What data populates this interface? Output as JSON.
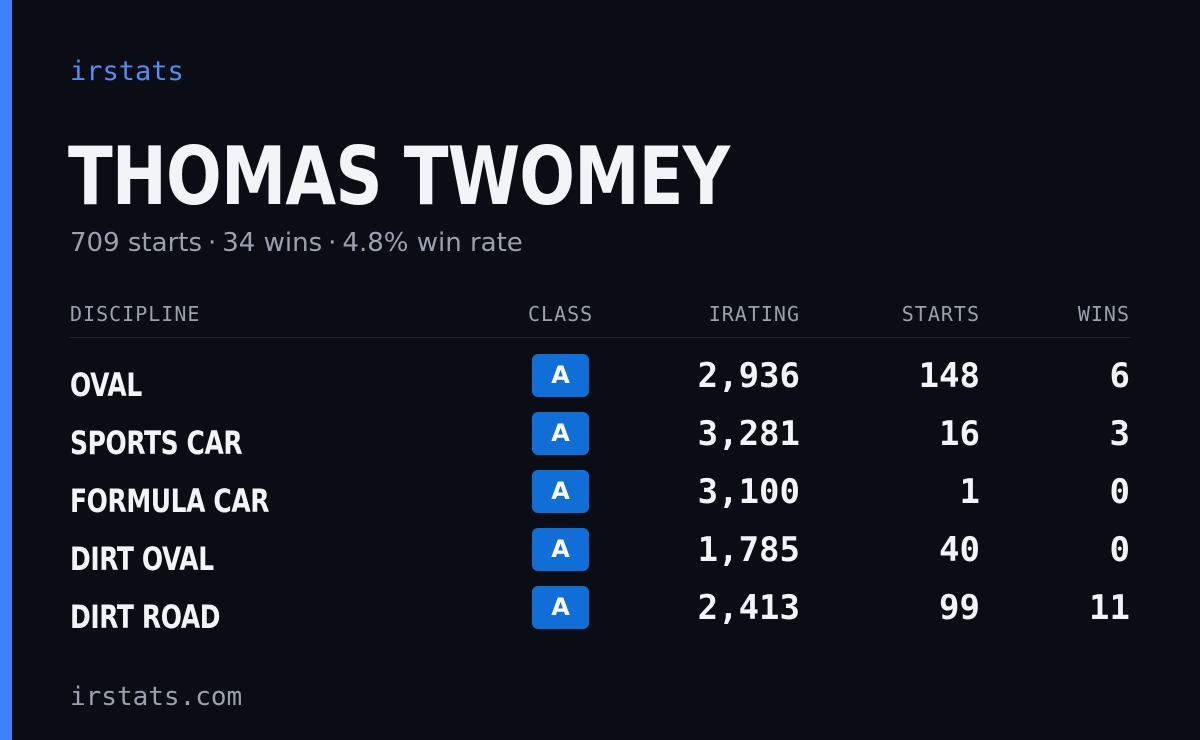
{
  "brand": "irstats",
  "driver": {
    "name": "THOMAS TWOMEY",
    "starts_text": "709 starts",
    "wins_text": "34 wins",
    "winrate_text": "4.8% win rate",
    "separator": "·"
  },
  "table": {
    "headers": {
      "discipline": "DISCIPLINE",
      "class": "CLASS",
      "irating": "IRATING",
      "starts": "STARTS",
      "wins": "WINS"
    },
    "rows": [
      {
        "discipline": "OVAL",
        "class": "A",
        "irating": "2,936",
        "starts": "148",
        "wins": "6"
      },
      {
        "discipline": "SPORTS CAR",
        "class": "A",
        "irating": "3,281",
        "starts": "16",
        "wins": "3"
      },
      {
        "discipline": "FORMULA CAR",
        "class": "A",
        "irating": "3,100",
        "starts": "1",
        "wins": "0"
      },
      {
        "discipline": "DIRT OVAL",
        "class": "A",
        "irating": "1,785",
        "starts": "40",
        "wins": "0"
      },
      {
        "discipline": "DIRT ROAD",
        "class": "A",
        "irating": "2,413",
        "starts": "99",
        "wins": "11"
      }
    ]
  },
  "footer": "irstats.com",
  "colors": {
    "background": "#0a0d14",
    "accent": "#3b82f6",
    "badge": "#0f6fd6",
    "text": "#f3f4f8",
    "muted": "#9aa1ad"
  }
}
